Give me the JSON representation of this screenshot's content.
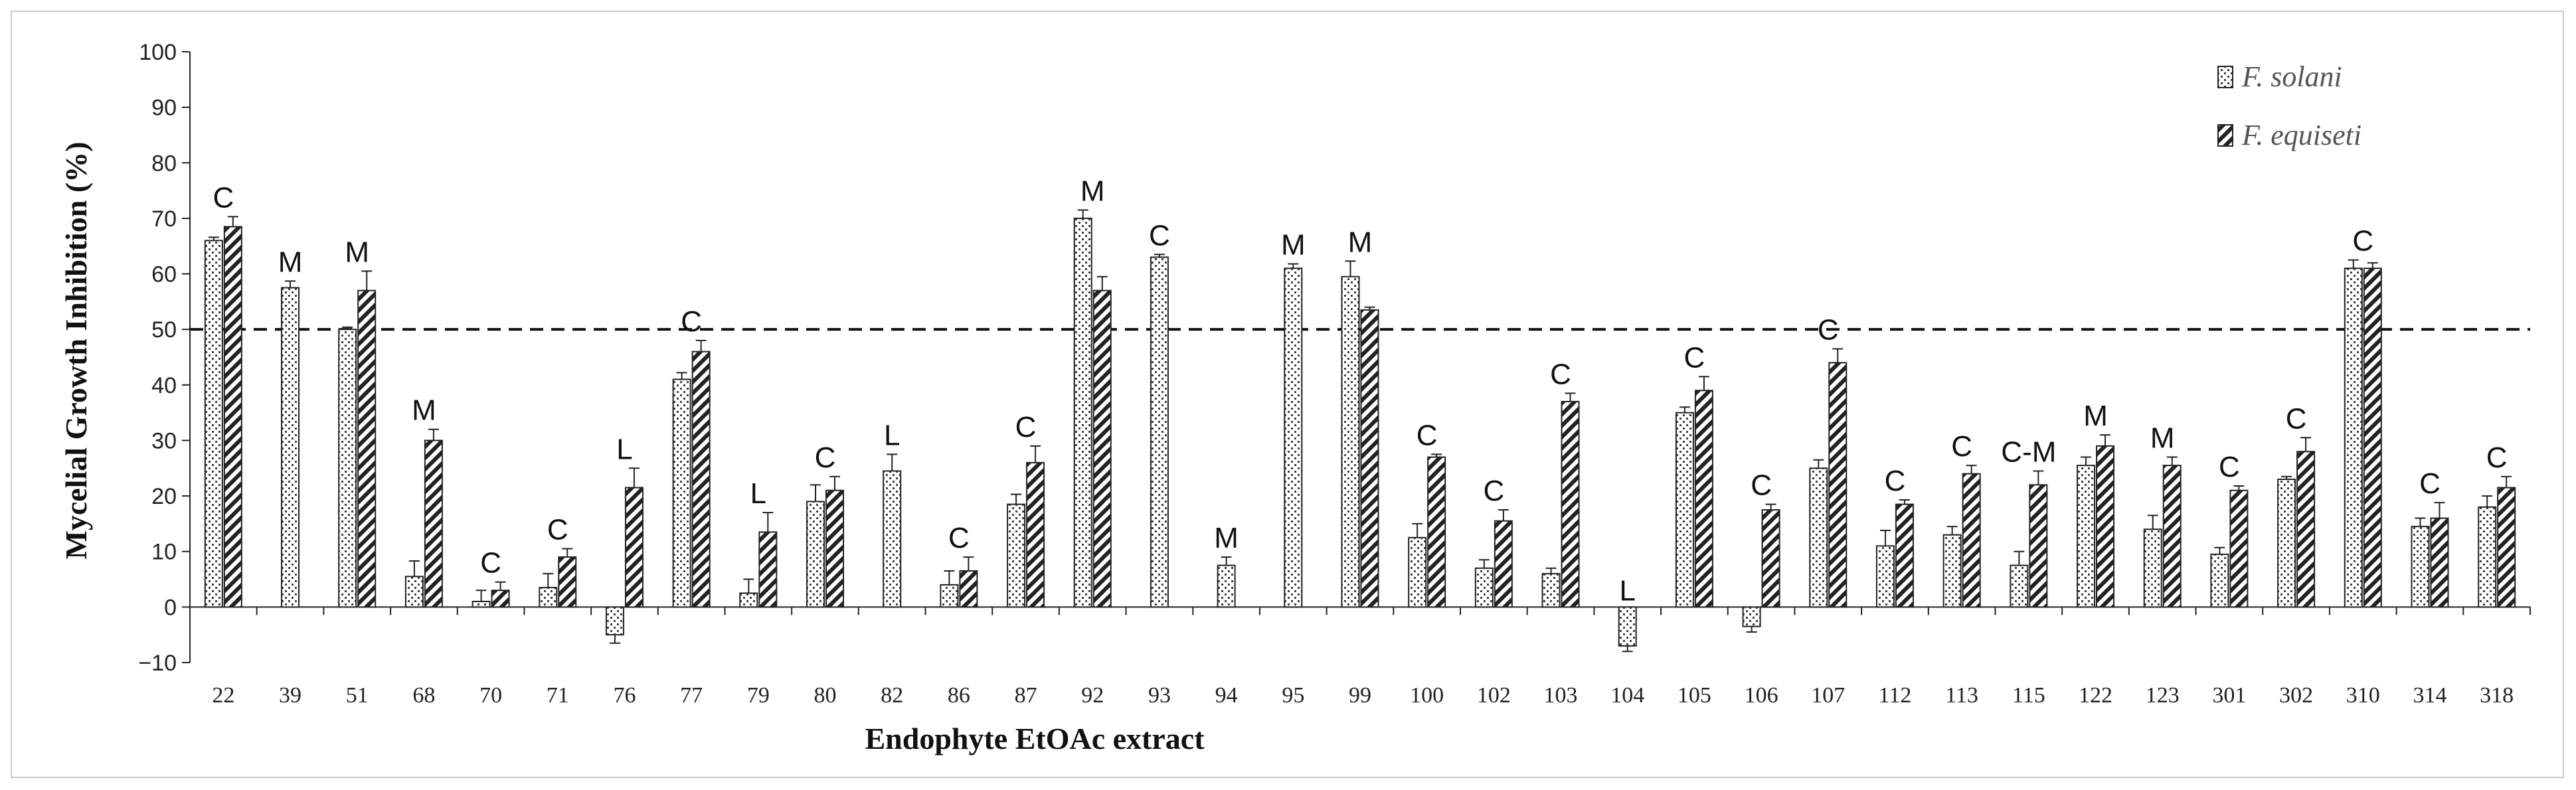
{
  "chart_data": {
    "type": "bar",
    "xlabel": "Endophyte EtOAc extract",
    "ylabel": "Mycelial Growth Inhibition (%)",
    "ylim": [
      -10,
      100
    ],
    "yticks": [
      -10,
      0,
      10,
      20,
      30,
      40,
      50,
      60,
      70,
      80,
      90,
      100
    ],
    "reference_line": 50,
    "legend_position": "top-right",
    "categories": [
      "22",
      "39",
      "51",
      "68",
      "70",
      "71",
      "76",
      "77",
      "79",
      "80",
      "82",
      "86",
      "87",
      "92",
      "93",
      "94",
      "95",
      "99",
      "100",
      "102",
      "103",
      "104",
      "105",
      "106",
      "107",
      "112",
      "113",
      "115",
      "122",
      "123",
      "301",
      "302",
      "310",
      "314",
      "318"
    ],
    "series": [
      {
        "name": "F. solani",
        "pattern": "dots",
        "values": [
          66,
          57.5,
          50,
          5.5,
          1,
          3.5,
          -5,
          41,
          2.5,
          19,
          24.5,
          4,
          18.5,
          70,
          63,
          7.5,
          61,
          59.5,
          12.5,
          7,
          6,
          -7,
          35,
          -3.5,
          25,
          11,
          13,
          7.5,
          25.5,
          14,
          9.5,
          23,
          61,
          14.5,
          18
        ],
        "errors": [
          0.6,
          1.2,
          0.4,
          2.8,
          2.0,
          2.5,
          1.5,
          1.2,
          2.5,
          3.0,
          3.0,
          2.5,
          1.8,
          1.5,
          0.5,
          1.5,
          0.8,
          2.8,
          2.5,
          1.5,
          1.0,
          1.0,
          1.0,
          1.0,
          1.5,
          2.8,
          1.5,
          2.5,
          1.5,
          2.5,
          1.2,
          0.5,
          1.5,
          1.5,
          2.0
        ]
      },
      {
        "name": "F. equiseti",
        "pattern": "hatch",
        "values": [
          68.5,
          null,
          57,
          30,
          3,
          9,
          21.5,
          46,
          13.5,
          21,
          null,
          6.5,
          26,
          57,
          null,
          null,
          null,
          53.5,
          27,
          15.5,
          37,
          null,
          39,
          17.5,
          44,
          18.5,
          24,
          22,
          29,
          25.5,
          21,
          28,
          61,
          16,
          21.5
        ],
        "errors": [
          1.8,
          null,
          3.5,
          2.0,
          1.5,
          1.5,
          3.5,
          2.0,
          3.5,
          2.5,
          null,
          2.5,
          3.0,
          2.5,
          null,
          null,
          null,
          0.5,
          0.5,
          2.0,
          1.5,
          null,
          2.5,
          1.0,
          2.5,
          0.8,
          1.5,
          2.5,
          2.0,
          1.5,
          0.8,
          2.5,
          1.0,
          2.8,
          2.0
        ]
      }
    ],
    "annotations": [
      "C",
      "M",
      "M",
      "M",
      "C",
      "C",
      "L",
      "C",
      "L",
      "C",
      "L",
      "C",
      "C",
      "M",
      "C",
      "M",
      "M",
      "M",
      "C",
      "C",
      "C",
      "L",
      "C",
      "C",
      "C",
      "C",
      "C",
      "C-M",
      "M",
      "M",
      "C",
      "C",
      "C",
      "C",
      "C"
    ]
  }
}
